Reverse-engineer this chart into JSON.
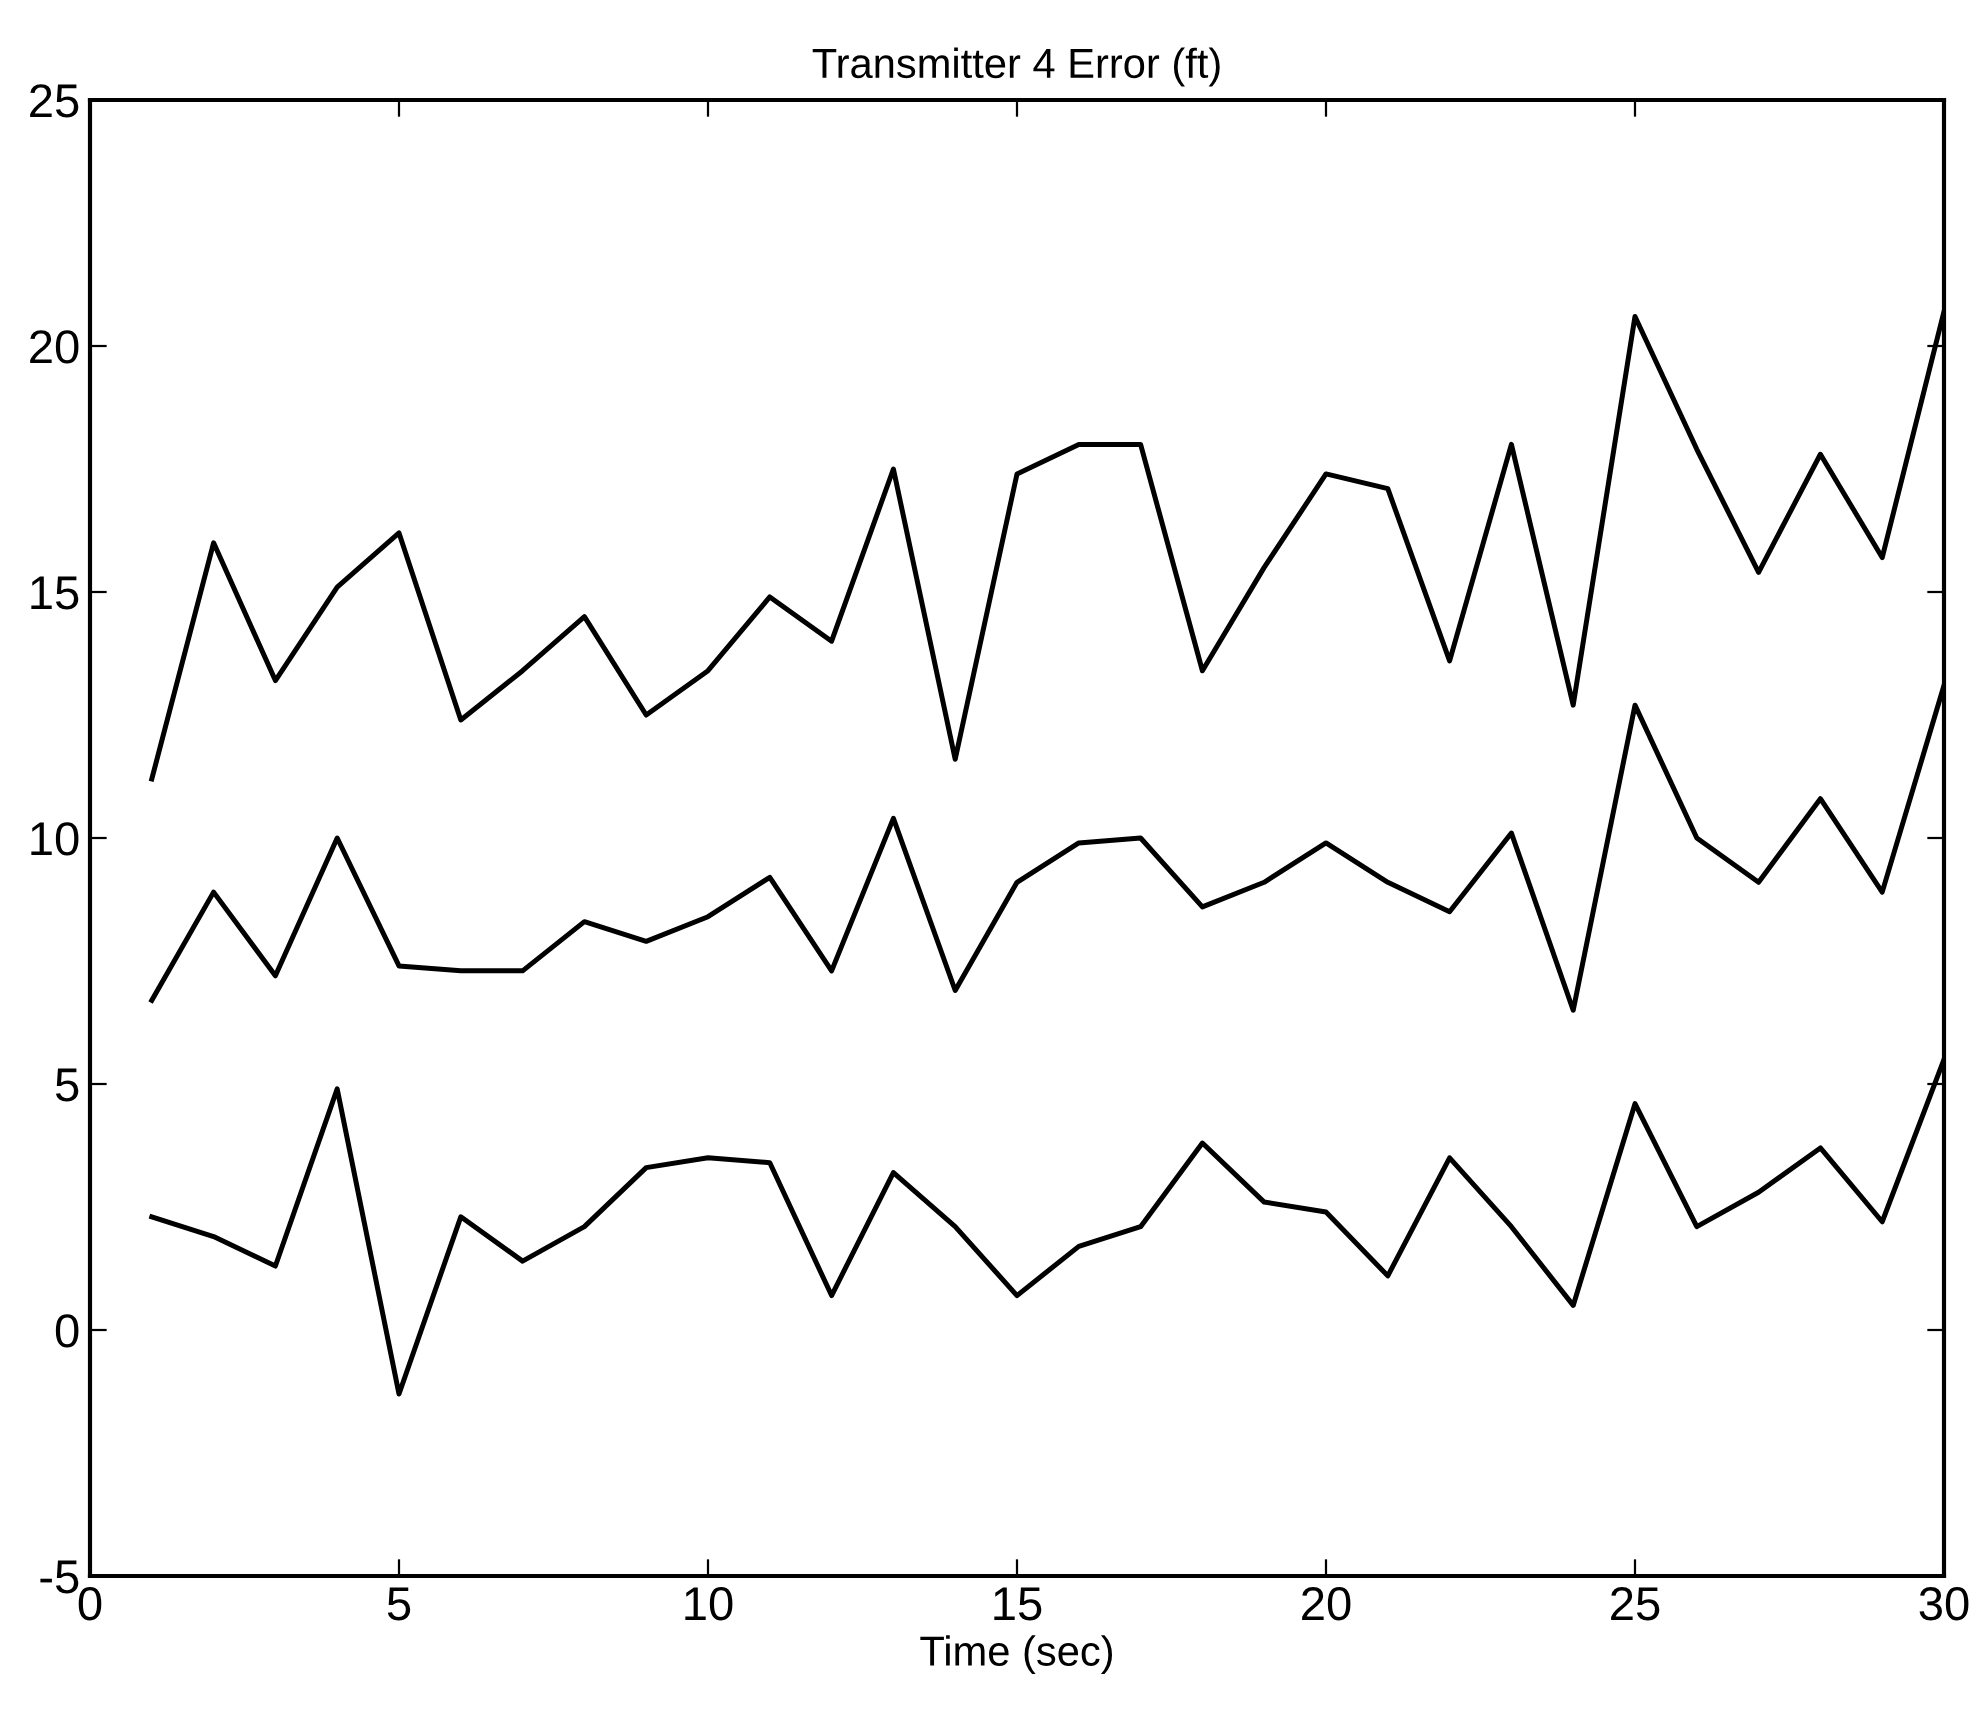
{
  "chart_data": {
    "type": "line",
    "title": "Transmitter 4 Error (ft)",
    "xlabel": "Time (sec)",
    "x": [
      1,
      2,
      3,
      4,
      5,
      6,
      7,
      8,
      9,
      10,
      11,
      12,
      13,
      14,
      15,
      16,
      17,
      18,
      19,
      20,
      21,
      22,
      23,
      24,
      25,
      26,
      27,
      28,
      29,
      30
    ],
    "series": [
      {
        "color": "#000000",
        "values": [
          11.2,
          16.0,
          13.2,
          15.1,
          16.2,
          12.4,
          13.4,
          14.5,
          12.5,
          13.4,
          14.9,
          14.0,
          17.5,
          11.6,
          17.4,
          18.0,
          18.0,
          13.4,
          15.5,
          17.4,
          17.1,
          13.6,
          18.0,
          12.7,
          20.6,
          17.9,
          15.4,
          17.8,
          15.7,
          20.7
        ]
      },
      {
        "color": "#000000",
        "values": [
          6.7,
          8.9,
          7.2,
          10.0,
          7.4,
          7.3,
          7.3,
          8.3,
          7.9,
          8.4,
          9.2,
          7.3,
          10.4,
          6.9,
          9.1,
          9.9,
          10.0,
          8.6,
          9.1,
          9.9,
          9.1,
          8.5,
          10.1,
          6.5,
          12.7,
          10.0,
          9.1,
          10.8,
          8.9,
          13.1
        ]
      },
      {
        "color": "#000000",
        "values": [
          2.3,
          1.9,
          1.3,
          4.9,
          -1.3,
          2.3,
          1.4,
          2.1,
          3.3,
          3.5,
          3.4,
          0.7,
          3.2,
          2.1,
          0.7,
          1.7,
          2.1,
          3.8,
          2.6,
          2.4,
          1.1,
          3.5,
          2.1,
          0.5,
          4.6,
          2.1,
          2.8,
          3.7,
          2.2,
          5.5
        ]
      }
    ],
    "xlim": [
      0,
      30
    ],
    "xticks": [
      0,
      5,
      10,
      15,
      20,
      25,
      30
    ],
    "ylim": [
      -5,
      25
    ],
    "yticks": [
      -5,
      0,
      5,
      10,
      15,
      20,
      25
    ],
    "grid": false,
    "legend": false,
    "marker": "none",
    "line_style": "solid"
  }
}
